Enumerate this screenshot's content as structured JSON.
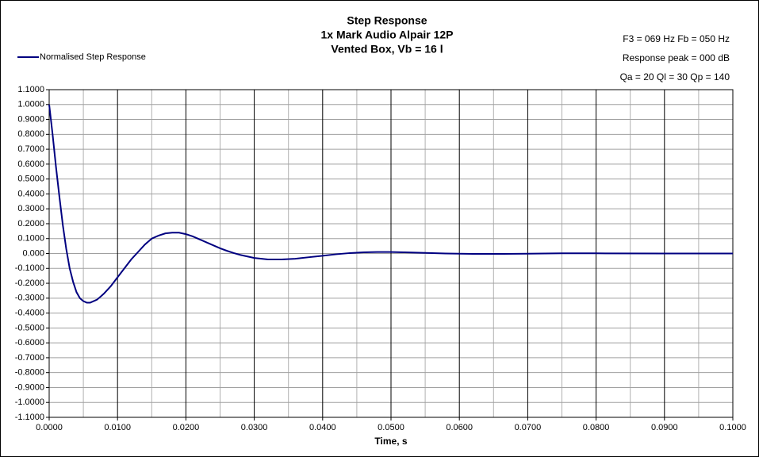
{
  "chart_data": {
    "type": "line",
    "title": [
      "Step Response",
      "1x Mark Audio Alpair 12P",
      "Vented Box, Vb = 16 l"
    ],
    "annotations": [
      "F3 = 069 Hz  Fb = 050 Hz",
      "Response  peak = 000 dB",
      "Qa = 20  Ql = 30  Qp = 140"
    ],
    "x_label": "Time, s",
    "legend": "top-left",
    "grid": true,
    "x": [
      0,
      0.0005,
      0.001,
      0.0015,
      0.002,
      0.0025,
      0.003,
      0.0035,
      0.004,
      0.0045,
      0.005,
      0.0055,
      0.006,
      0.0065,
      0.007,
      0.008,
      0.009,
      0.01,
      0.011,
      0.012,
      0.013,
      0.014,
      0.015,
      0.016,
      0.017,
      0.018,
      0.019,
      0.02,
      0.021,
      0.022,
      0.023,
      0.024,
      0.025,
      0.026,
      0.027,
      0.028,
      0.029,
      0.03,
      0.032,
      0.034,
      0.036,
      0.038,
      0.04,
      0.042,
      0.044,
      0.046,
      0.048,
      0.05,
      0.052,
      0.055,
      0.058,
      0.062,
      0.066,
      0.07,
      0.075,
      0.08,
      0.09,
      0.1
    ],
    "series": [
      {
        "name": "Normalised Step Response",
        "color": "#000080",
        "values": [
          1.0,
          0.8,
          0.58,
          0.38,
          0.19,
          0.03,
          -0.1,
          -0.19,
          -0.26,
          -0.3,
          -0.32,
          -0.33,
          -0.33,
          -0.32,
          -0.31,
          -0.27,
          -0.22,
          -0.16,
          -0.1,
          -0.04,
          0.01,
          0.06,
          0.1,
          0.12,
          0.135,
          0.14,
          0.14,
          0.13,
          0.115,
          0.095,
          0.075,
          0.055,
          0.035,
          0.018,
          0.003,
          -0.01,
          -0.02,
          -0.03,
          -0.04,
          -0.04,
          -0.035,
          -0.025,
          -0.015,
          -0.005,
          0.003,
          0.008,
          0.01,
          0.01,
          0.008,
          0.004,
          0.0,
          -0.003,
          -0.003,
          -0.001,
          0.001,
          0.001,
          0.0,
          0.0
        ]
      }
    ],
    "xlim": [
      0,
      0.1
    ],
    "ylim": [
      -1.1,
      1.1
    ],
    "xticks": [
      {
        "value": 0,
        "label": "0.0000"
      },
      {
        "value": 0.01,
        "label": "0.0100"
      },
      {
        "value": 0.02,
        "label": "0.0200"
      },
      {
        "value": 0.03,
        "label": "0.0300"
      },
      {
        "value": 0.04,
        "label": "0.0400"
      },
      {
        "value": 0.05,
        "label": "0.0500"
      },
      {
        "value": 0.06,
        "label": "0.0600"
      },
      {
        "value": 0.07,
        "label": "0.0700"
      },
      {
        "value": 0.08,
        "label": "0.0800"
      },
      {
        "value": 0.09,
        "label": "0.0900"
      },
      {
        "value": 0.1,
        "label": "0.1000"
      }
    ],
    "yticks": [
      {
        "value": 1.1,
        "label": "1.1000"
      },
      {
        "value": 1.0,
        "label": "1.0000"
      },
      {
        "value": 0.9,
        "label": "0.9000"
      },
      {
        "value": 0.8,
        "label": "0.8000"
      },
      {
        "value": 0.7,
        "label": "0.7000"
      },
      {
        "value": 0.6,
        "label": "0.6000"
      },
      {
        "value": 0.5,
        "label": "0.5000"
      },
      {
        "value": 0.4,
        "label": "0.4000"
      },
      {
        "value": 0.3,
        "label": "0.3000"
      },
      {
        "value": 0.2,
        "label": "0.2000"
      },
      {
        "value": 0.1,
        "label": "0.1000"
      },
      {
        "value": 0,
        "label": "0.000"
      },
      {
        "value": -0.1,
        "label": "-0.1000"
      },
      {
        "value": -0.2,
        "label": "-0.2000"
      },
      {
        "value": -0.3,
        "label": "-0.3000"
      },
      {
        "value": -0.4,
        "label": "-0.4000"
      },
      {
        "value": -0.5,
        "label": "-0.5000"
      },
      {
        "value": -0.6,
        "label": "-0.6000"
      },
      {
        "value": -0.7,
        "label": "-0.7000"
      },
      {
        "value": -0.8,
        "label": "-0.8000"
      },
      {
        "value": -0.9,
        "label": "-0.9000"
      },
      {
        "value": -1.0,
        "label": "-1.0000"
      },
      {
        "value": -1.1,
        "label": "-1.1000"
      }
    ]
  }
}
